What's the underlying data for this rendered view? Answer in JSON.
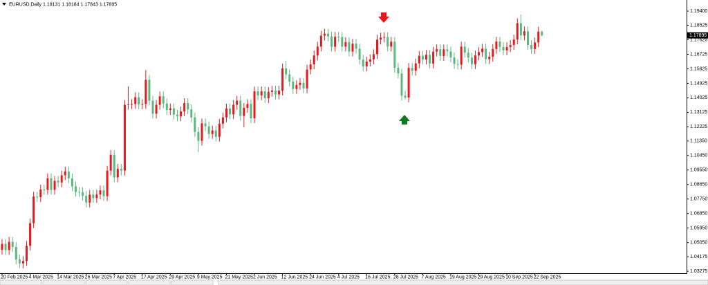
{
  "chart_data": {
    "type": "candlestick",
    "title": "EURUSD,Daily",
    "last_price": 1.17895,
    "up_color": "#e8191c",
    "down_color": "#5ab97e",
    "ylim": [
      1.0315,
      1.1996
    ],
    "yticks": [
      {
        "value": 1.194,
        "label": "1.19400"
      },
      {
        "value": 1.18525,
        "label": "1.18525"
      },
      {
        "value": 1.17625,
        "label": "1.17625"
      },
      {
        "value": 1.16725,
        "label": "1.16725"
      },
      {
        "value": 1.15825,
        "label": "1.15825"
      },
      {
        "value": 1.14925,
        "label": "1.14925"
      },
      {
        "value": 1.14025,
        "label": "1.14025"
      },
      {
        "value": 1.13125,
        "label": "1.13125"
      },
      {
        "value": 1.12225,
        "label": "1.12225"
      },
      {
        "value": 1.1135,
        "label": "1.11350"
      },
      {
        "value": 1.1045,
        "label": "1.10450"
      },
      {
        "value": 1.0955,
        "label": "1.09550"
      },
      {
        "value": 1.0865,
        "label": "1.08650"
      },
      {
        "value": 1.0775,
        "label": "1.07750"
      },
      {
        "value": 1.0685,
        "label": "1.06850"
      },
      {
        "value": 1.0595,
        "label": "1.05950"
      },
      {
        "value": 1.0505,
        "label": "1.05050"
      },
      {
        "value": 1.04175,
        "label": "1.04175"
      },
      {
        "value": 1.03275,
        "label": "1.03275"
      }
    ],
    "categories": [
      "20 Feb 2025",
      null,
      null,
      null,
      null,
      null,
      null,
      null,
      "4 Mar 2025",
      null,
      null,
      null,
      null,
      null,
      null,
      null,
      "14 Mar 2025",
      null,
      null,
      null,
      null,
      null,
      null,
      null,
      "26 Mar 2025",
      null,
      null,
      null,
      null,
      null,
      null,
      null,
      "7 Apr 2025",
      null,
      null,
      null,
      null,
      null,
      null,
      null,
      "17 Apr 2025",
      null,
      null,
      null,
      null,
      null,
      null,
      null,
      "29 Apr 2025",
      null,
      null,
      null,
      null,
      null,
      null,
      null,
      "9 May 2025",
      null,
      null,
      null,
      null,
      null,
      null,
      null,
      "21 May 2025",
      null,
      null,
      null,
      null,
      null,
      null,
      null,
      "2 Jun 2025",
      null,
      null,
      null,
      null,
      null,
      null,
      null,
      "12 Jun 2025",
      null,
      null,
      null,
      null,
      null,
      null,
      null,
      "24 Jun 2025",
      null,
      null,
      null,
      null,
      null,
      null,
      null,
      "4 Jul 2025",
      null,
      null,
      null,
      null,
      null,
      null,
      null,
      "16 Jul 2025",
      null,
      null,
      null,
      null,
      null,
      null,
      null,
      "28 Jul 2025",
      null,
      null,
      null,
      null,
      null,
      null,
      null,
      "7 Aug 2025",
      null,
      null,
      null,
      null,
      null,
      null,
      null,
      "19 Aug 2025",
      null,
      null,
      null,
      null,
      null,
      null,
      null,
      "29 Aug 2025",
      null,
      null,
      null,
      null,
      null,
      null,
      null,
      "10 Sep 2025",
      null,
      null,
      null,
      null,
      null,
      null,
      null,
      "22 Sep 2025",
      null,
      null
    ],
    "ohlc": [
      [
        1.046,
        1.0527,
        1.043,
        1.0497
      ],
      [
        1.0497,
        1.0527,
        1.0429,
        1.0459
      ],
      [
        1.0459,
        1.054,
        1.0429,
        1.051
      ],
      [
        1.051,
        1.054,
        1.0448,
        1.0478
      ],
      [
        1.0478,
        1.0508,
        1.0371,
        1.0401
      ],
      [
        1.0401,
        1.0431,
        1.0346,
        1.0376
      ],
      [
        1.0376,
        1.0421,
        1.0346,
        1.0391
      ],
      [
        1.0391,
        1.0515,
        1.0361,
        1.0485
      ],
      [
        1.0485,
        1.0655,
        1.0455,
        1.0625
      ],
      [
        1.0625,
        1.082,
        1.0595,
        1.079
      ],
      [
        1.079,
        1.082,
        1.0757,
        1.0787
      ],
      [
        1.0787,
        1.0864,
        1.0757,
        1.0834
      ],
      [
        1.0834,
        1.0864,
        1.0802,
        1.0832
      ],
      [
        1.0832,
        1.0934,
        1.0802,
        1.0904
      ],
      [
        1.0904,
        1.0934,
        1.0802,
        1.0832
      ],
      [
        1.0832,
        1.0918,
        1.0802,
        1.0888
      ],
      [
        1.0888,
        1.0918,
        1.0848,
        1.0878
      ],
      [
        1.0878,
        1.0952,
        1.0848,
        1.0922
      ],
      [
        1.0922,
        1.0976,
        1.0892,
        1.0946
      ],
      [
        1.0946,
        1.0976,
        1.0873,
        1.0903
      ],
      [
        1.0903,
        1.0933,
        1.0823,
        1.0853
      ],
      [
        1.0853,
        1.0883,
        1.0789,
        1.0819
      ],
      [
        1.0819,
        1.0849,
        1.0788,
        1.0818
      ],
      [
        1.0818,
        1.0848,
        1.0765,
        1.0795
      ],
      [
        1.0795,
        1.0825,
        1.0723,
        1.0753
      ],
      [
        1.0753,
        1.0832,
        1.0723,
        1.0802
      ],
      [
        1.0802,
        1.0832,
        1.0751,
        1.0781
      ],
      [
        1.0781,
        1.0833,
        1.0751,
        1.0803
      ],
      [
        1.0803,
        1.0859,
        1.0773,
        1.0829
      ],
      [
        1.0829,
        1.0859,
        1.0763,
        1.0793
      ],
      [
        1.0793,
        1.0981,
        1.0763,
        1.0951
      ],
      [
        1.0951,
        1.1079,
        1.0921,
        1.1049
      ],
      [
        1.1049,
        1.1079,
        1.0879,
        1.0909
      ],
      [
        1.0909,
        1.0992,
        1.0879,
        1.0962
      ],
      [
        1.0962,
        1.0992,
        1.0921,
        1.0951
      ],
      [
        1.0951,
        1.1389,
        1.0921,
        1.1359
      ],
      [
        1.1359,
        1.1473,
        1.1329,
        1.1363
      ],
      [
        1.1363,
        1.1394,
        1.1333,
        1.1364
      ],
      [
        1.1364,
        1.1436,
        1.1334,
        1.1406
      ],
      [
        1.1406,
        1.1436,
        1.1332,
        1.1362
      ],
      [
        1.1362,
        1.1394,
        1.1332,
        1.1364
      ],
      [
        1.1364,
        1.1574,
        1.1334,
        1.1514
      ],
      [
        1.1514,
        1.1544,
        1.1354,
        1.1384
      ],
      [
        1.1384,
        1.1414,
        1.1274,
        1.1304
      ],
      [
        1.1304,
        1.1389,
        1.1274,
        1.1359
      ],
      [
        1.1359,
        1.1442,
        1.1329,
        1.1412
      ],
      [
        1.1412,
        1.1442,
        1.1337,
        1.1367
      ],
      [
        1.1367,
        1.1397,
        1.1297,
        1.1327
      ],
      [
        1.1327,
        1.1367,
        1.1297,
        1.1337
      ],
      [
        1.1337,
        1.1367,
        1.1268,
        1.1298
      ],
      [
        1.1298,
        1.1328,
        1.1257,
        1.1287
      ],
      [
        1.1287,
        1.1348,
        1.1257,
        1.1318
      ],
      [
        1.1318,
        1.14,
        1.1288,
        1.137
      ],
      [
        1.137,
        1.14,
        1.1301,
        1.1331
      ],
      [
        1.1331,
        1.1361,
        1.1251,
        1.1281
      ],
      [
        1.1281,
        1.1311,
        1.1161,
        1.1191
      ],
      [
        1.1191,
        1.1221,
        1.1066,
        1.1136
      ],
      [
        1.1136,
        1.1274,
        1.1106,
        1.1244
      ],
      [
        1.1244,
        1.1274,
        1.1196,
        1.1226
      ],
      [
        1.1226,
        1.1256,
        1.1148,
        1.1178
      ],
      [
        1.1178,
        1.123,
        1.1148,
        1.12
      ],
      [
        1.12,
        1.123,
        1.1131,
        1.1161
      ],
      [
        1.1161,
        1.1272,
        1.1131,
        1.1242
      ],
      [
        1.1242,
        1.1311,
        1.1212,
        1.1281
      ],
      [
        1.1281,
        1.1366,
        1.1251,
        1.1336
      ],
      [
        1.1336,
        1.1366,
        1.127,
        1.13
      ],
      [
        1.13,
        1.1389,
        1.127,
        1.1359
      ],
      [
        1.1359,
        1.1415,
        1.1329,
        1.1385
      ],
      [
        1.1385,
        1.1415,
        1.126,
        1.129
      ],
      [
        1.129,
        1.137,
        1.122,
        1.134
      ],
      [
        1.134,
        1.1394,
        1.131,
        1.1364
      ],
      [
        1.1364,
        1.1394,
        1.1246,
        1.1276
      ],
      [
        1.1276,
        1.1473,
        1.1246,
        1.1443
      ],
      [
        1.1443,
        1.1473,
        1.1388,
        1.1418
      ],
      [
        1.1418,
        1.1473,
        1.1388,
        1.1443
      ],
      [
        1.1443,
        1.1473,
        1.137,
        1.14
      ],
      [
        1.14,
        1.1469,
        1.137,
        1.1439
      ],
      [
        1.1439,
        1.1478,
        1.1409,
        1.1448
      ],
      [
        1.1448,
        1.1478,
        1.1393,
        1.1423
      ],
      [
        1.1423,
        1.1477,
        1.1393,
        1.1447
      ],
      [
        1.1447,
        1.1615,
        1.1417,
        1.1585
      ],
      [
        1.1585,
        1.1631,
        1.1518,
        1.1548
      ],
      [
        1.1548,
        1.1578,
        1.1473,
        1.1503
      ],
      [
        1.1503,
        1.1533,
        1.1427,
        1.1457
      ],
      [
        1.1457,
        1.1512,
        1.1427,
        1.1482
      ],
      [
        1.1482,
        1.1525,
        1.1452,
        1.1495
      ],
      [
        1.1495,
        1.1525,
        1.1431,
        1.1461
      ],
      [
        1.1461,
        1.1608,
        1.1431,
        1.1578
      ],
      [
        1.1578,
        1.164,
        1.1548,
        1.161
      ],
      [
        1.161,
        1.1695,
        1.158,
        1.1665
      ],
      [
        1.1665,
        1.175,
        1.1635,
        1.172
      ],
      [
        1.172,
        1.1818,
        1.169,
        1.1788
      ],
      [
        1.1788,
        1.183,
        1.1758,
        1.18
      ],
      [
        1.18,
        1.183,
        1.1753,
        1.1783
      ],
      [
        1.1783,
        1.1813,
        1.1689,
        1.1719
      ],
      [
        1.1719,
        1.1811,
        1.1689,
        1.1781
      ],
      [
        1.1781,
        1.1811,
        1.1749,
        1.1779
      ],
      [
        1.1779,
        1.1809,
        1.169,
        1.172
      ],
      [
        1.172,
        1.1778,
        1.169,
        1.1748
      ],
      [
        1.1748,
        1.1778,
        1.1659,
        1.1689
      ],
      [
        1.1689,
        1.1768,
        1.1659,
        1.1738
      ],
      [
        1.1738,
        1.1768,
        1.1677,
        1.1707
      ],
      [
        1.1707,
        1.1737,
        1.1609,
        1.1639
      ],
      [
        1.1639,
        1.1669,
        1.1567,
        1.1597
      ],
      [
        1.1597,
        1.1657,
        1.1567,
        1.1627
      ],
      [
        1.1627,
        1.1671,
        1.1597,
        1.1641
      ],
      [
        1.1641,
        1.1703,
        1.1611,
        1.1673
      ],
      [
        1.1673,
        1.1793,
        1.1643,
        1.1763
      ],
      [
        1.1763,
        1.1806,
        1.1733,
        1.1776
      ],
      [
        1.1776,
        1.1809,
        1.1746,
        1.1779
      ],
      [
        1.1779,
        1.1809,
        1.169,
        1.172
      ],
      [
        1.172,
        1.178,
        1.169,
        1.175
      ],
      [
        1.175,
        1.178,
        1.1559,
        1.1589
      ],
      [
        1.1589,
        1.1619,
        1.1523,
        1.1553
      ],
      [
        1.1553,
        1.1583,
        1.1386,
        1.1416
      ],
      [
        1.1416,
        1.1446,
        1.1392,
        1.1404
      ],
      [
        1.1404,
        1.1618,
        1.1374,
        1.1588
      ],
      [
        1.1588,
        1.1618,
        1.154,
        1.157
      ],
      [
        1.157,
        1.1646,
        1.154,
        1.1616
      ],
      [
        1.1616,
        1.1693,
        1.1586,
        1.1663
      ],
      [
        1.1663,
        1.1693,
        1.161,
        1.164
      ],
      [
        1.164,
        1.1699,
        1.161,
        1.1669
      ],
      [
        1.1669,
        1.1699,
        1.1585,
        1.1615
      ],
      [
        1.1615,
        1.1719,
        1.1585,
        1.1689
      ],
      [
        1.1689,
        1.1734,
        1.1659,
        1.1704
      ],
      [
        1.1704,
        1.1734,
        1.1632,
        1.1662
      ],
      [
        1.1662,
        1.1733,
        1.1632,
        1.1703
      ],
      [
        1.1703,
        1.1733,
        1.166,
        1.169
      ],
      [
        1.169,
        1.172,
        1.1623,
        1.1653
      ],
      [
        1.1653,
        1.1683,
        1.1582,
        1.1612
      ],
      [
        1.1612,
        1.1642,
        1.1578,
        1.1608
      ],
      [
        1.1608,
        1.175,
        1.1578,
        1.172
      ],
      [
        1.172,
        1.175,
        1.1652,
        1.1682
      ],
      [
        1.1682,
        1.1712,
        1.1622,
        1.1652
      ],
      [
        1.1652,
        1.1682,
        1.1581,
        1.1611
      ],
      [
        1.1611,
        1.1695,
        1.1581,
        1.1665
      ],
      [
        1.1665,
        1.1716,
        1.1635,
        1.1686
      ],
      [
        1.1686,
        1.1737,
        1.1656,
        1.1707
      ],
      [
        1.1707,
        1.1737,
        1.1612,
        1.1642
      ],
      [
        1.1642,
        1.1687,
        1.1612,
        1.1657
      ],
      [
        1.1657,
        1.1735,
        1.1627,
        1.1705
      ],
      [
        1.1705,
        1.1781,
        1.1675,
        1.1751
      ],
      [
        1.1751,
        1.1781,
        1.1688,
        1.1718
      ],
      [
        1.1718,
        1.1748,
        1.1667,
        1.1697
      ],
      [
        1.1697,
        1.1747,
        1.1667,
        1.1717
      ],
      [
        1.1717,
        1.176,
        1.1687,
        1.173
      ],
      [
        1.173,
        1.1794,
        1.17,
        1.1764
      ],
      [
        1.1764,
        1.1895,
        1.1734,
        1.1865
      ],
      [
        1.1865,
        1.1919,
        1.1759,
        1.1789
      ],
      [
        1.1789,
        1.1845,
        1.1759,
        1.1815
      ],
      [
        1.1815,
        1.1845,
        1.17,
        1.173
      ],
      [
        1.173,
        1.176,
        1.1675,
        1.1705
      ],
      [
        1.1705,
        1.1776,
        1.1675,
        1.1746
      ],
      [
        1.1746,
        1.1843,
        1.1716,
        1.1813
      ],
      [
        1.18131,
        1.18184,
        1.17843,
        1.17895
      ]
    ]
  }
}
